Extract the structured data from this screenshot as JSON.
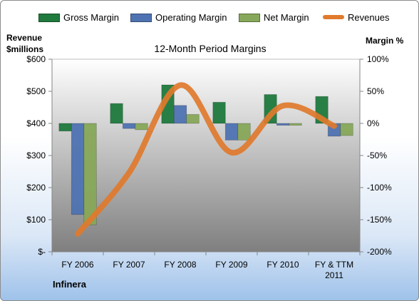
{
  "legend": {
    "gross": "Gross Margin",
    "operating": "Operating Margin",
    "net": "Net Margin",
    "revenues": "Revenues"
  },
  "left_axis_title": [
    "Revenue",
    "$millions"
  ],
  "right_axis_title": "Margin %",
  "company": "Infinera",
  "colors": {
    "gross": "#1f7a3d",
    "operating": "#4f73b2",
    "net": "#87a85a",
    "revenues": "#e07a2c",
    "plot_top": "#ffffff",
    "plot_bottom": "#7f7f7f"
  },
  "chart_data": {
    "type": "bar",
    "title": "12-Month Period Margins",
    "categories": [
      "FY 2006",
      "FY 2007",
      "FY 2008",
      "FY 2009",
      "FY 2010",
      "FY & TTM 2011"
    ],
    "series": [
      {
        "name": "Gross Margin",
        "axis": "right",
        "values": [
          -12,
          31,
          60,
          33,
          45,
          42
        ]
      },
      {
        "name": "Operating Margin",
        "axis": "right",
        "values": [
          -142,
          -8,
          28,
          -26,
          -3,
          -20
        ]
      },
      {
        "name": "Net Margin",
        "axis": "right",
        "values": [
          -158,
          -10,
          14,
          -26,
          -3,
          -19
        ]
      },
      {
        "name": "Revenues",
        "type": "line",
        "axis": "left",
        "values": [
          56,
          246,
          519,
          309,
          455,
          392
        ]
      }
    ],
    "left_axis": {
      "label": "Revenue $millions",
      "range": [
        0,
        600
      ],
      "ticks": [
        "$-",
        "$100",
        "$200",
        "$300",
        "$400",
        "$500",
        "$600"
      ]
    },
    "right_axis": {
      "label": "Margin %",
      "range": [
        -200,
        100
      ],
      "ticks": [
        "-200%",
        "-150%",
        "-100%",
        "-50%",
        "0%",
        "50%",
        "100%"
      ]
    },
    "grid": false,
    "legend_position": "top"
  }
}
